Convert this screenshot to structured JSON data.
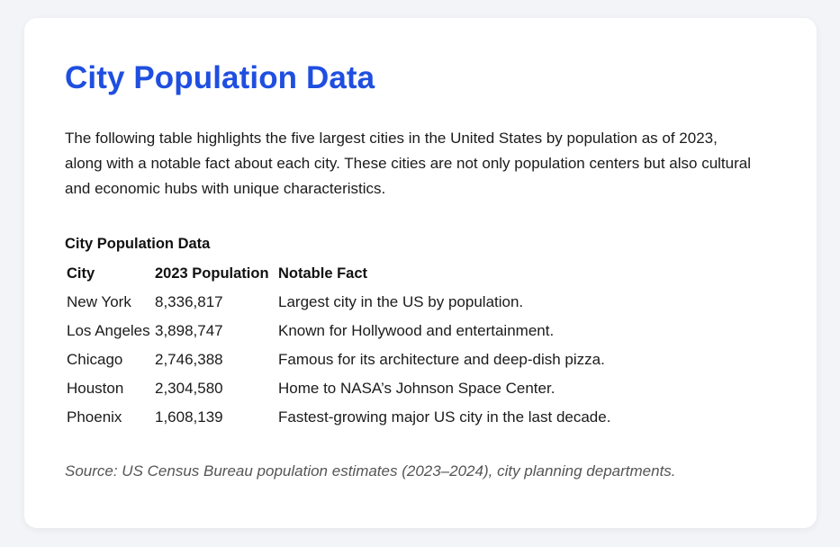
{
  "page": {
    "title": "City Population Data",
    "intro": "The following table highlights the five largest cities in the United States by population as of 2023, along with a notable fact about each city. These cities are not only population centers but also cultural and economic hubs with unique characteristics.",
    "source": "Source: US Census Bureau population estimates (2023–2024), city planning departments."
  },
  "table": {
    "caption": "City Population Data",
    "headers": [
      "City",
      "2023 Population",
      "Notable Fact"
    ],
    "rows": [
      [
        "New York",
        "8,336,817",
        "Largest city in the US by population."
      ],
      [
        "Los Angeles",
        "3,898,747",
        "Known for Hollywood and entertainment."
      ],
      [
        "Chicago",
        "2,746,388",
        "Famous for its architecture and deep-dish pizza."
      ],
      [
        "Houston",
        "2,304,580",
        "Home to NASA’s Johnson Space Center."
      ],
      [
        "Phoenix",
        "1,608,139",
        "Fastest-growing major US city in the last decade."
      ]
    ]
  },
  "colors": {
    "title": "#1f4fe0",
    "background": "#f3f4f8",
    "card": "#ffffff"
  }
}
